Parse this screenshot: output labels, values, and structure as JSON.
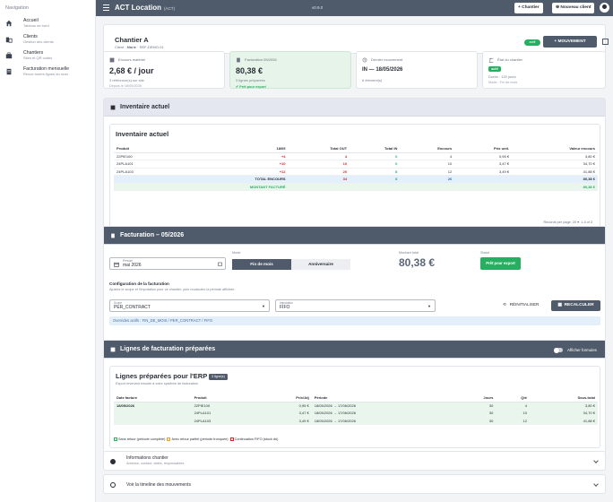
{
  "sidebar": {
    "title": "Navigation",
    "items": [
      {
        "label": "Accueil",
        "sub": "Tableau de bord",
        "icon": "home-icon"
      },
      {
        "label": "Clients",
        "sub": "Gestion des clients",
        "icon": "building-icon"
      },
      {
        "label": "Chantiers",
        "sub": "Sites et QR codes",
        "icon": "briefcase-icon"
      },
      {
        "label": "Facturation mensuelle",
        "sub": "Revue toutes lignes du mois",
        "icon": "receipt-icon"
      }
    ]
  },
  "topbar": {
    "title": "ACT Location",
    "badge": "(ACT)",
    "version": "v0.9.0",
    "chantier_btn": "+ Chantier",
    "client_btn": "Nouveau client"
  },
  "header": {
    "title": "Chantier A",
    "client_label": "Client :",
    "client_name": "Marie",
    "client_ref": "· REF-DEMO-01",
    "status": "actif",
    "mouvement_btn": "+ MOUVEMENT"
  },
  "kpis": [
    {
      "label": "Encours matériel",
      "value": "2,68 € / jour",
      "d1": "3 référence(s) sur site",
      "d2": "Depuis le 18/05/2026"
    },
    {
      "label": "Facturation 05/2026",
      "value": "80,38 €",
      "d1": "3 lignes préparées",
      "d2": "Prêt pour export"
    },
    {
      "label": "Dernier mouvement",
      "value": "IN — 18/05/2026",
      "d1": "6 élément(s)",
      "d2": ""
    },
    {
      "label": "État du chantier",
      "value": "actif",
      "d1": "Durée : 120 jours",
      "d2": "Mode : Fin de mois"
    }
  ],
  "inventaire": {
    "section_title": "Inventaire actuel",
    "card_title": "Inventaire actuel",
    "columns": [
      "Produit",
      "18/05",
      "Total OUT",
      "Total IN",
      "Encours",
      "Prix unit.",
      "Valeur encours"
    ],
    "rows": [
      [
        "22PIE100",
        "+4",
        "4",
        "0",
        "4",
        "0,95 €",
        "3,80 €"
      ],
      [
        "24PLA101",
        "+10",
        "10",
        "0",
        "10",
        "3,47 €",
        "34,70 €"
      ],
      [
        "24PLA103",
        "+12",
        "20",
        "8",
        "12",
        "3,49 €",
        "41,88 €"
      ]
    ],
    "total_label": "TOTAL ENCOURS",
    "total": [
      "34",
      "8",
      "26",
      "80,38 €"
    ],
    "montant_label": "MONTANT FACTURÉ",
    "montant": "80,38 €",
    "records_label": "Records per page:",
    "records_value": "20 ▾",
    "range": "1-3 of 3"
  },
  "facturation": {
    "section_title": "Facturation – 05/2026",
    "periode_label": "Période",
    "periode_value": "mai 2026",
    "mode_label": "Mode",
    "mode_fin": "Fin de mois",
    "mode_anniv": "Anniversaire",
    "montant_label": "Montant total",
    "montant_value": "80,38 €",
    "statut_label": "Statut",
    "statut_value": "Prêt pour export",
    "config_title": "Configuration de la facturation",
    "config_sub": "Ajustez le scope et l'imputation pour ce chantier, puis recalculez la période affichée.",
    "scope_label": "Scope",
    "scope_value": "PER_CONTRACT",
    "imputation_label": "Imputation",
    "imputation_value": "FIFO",
    "reset_btn": "RÉINITIALISER",
    "recalc_btn": "RECALCULER",
    "overrides": "Overrides actifs : FIN_DE_MOIS / PER_CONTRACT / FIFO"
  },
  "lignes": {
    "section_title": "Lignes de facturation préparées",
    "toggle_label": "Afficher formules",
    "card_title": "Lignes préparées pour l'ERP",
    "count_badge": "3 ligne(s)",
    "subtitle": "Export revenant ensuite à votre système de facturation",
    "columns": [
      "Date facture",
      "Produit",
      "Prix/Jdj",
      "Période",
      "Jours",
      "Qté",
      "Sous-total"
    ],
    "rows": [
      [
        "18/05/2026",
        "22PIE100",
        "0,95 €",
        "18/05/2026 → 17/06/2026",
        "30",
        "4",
        "3,80 €"
      ],
      [
        "",
        "24PLA101",
        "3,47 €",
        "18/05/2026 → 17/06/2026",
        "30",
        "10",
        "34,70 €"
      ],
      [
        "",
        "24PLA103",
        "3,49 €",
        "18/05/2026 → 17/06/2026",
        "30",
        "12",
        "41,88 €"
      ]
    ],
    "legend": [
      "Sans retour (période complète)",
      "Avec retour partiel (période tronquée)",
      "Continuation FIFO (stock dû)"
    ]
  },
  "accordions": [
    {
      "title": "Informations chantier",
      "sub": "Adresse, contact, dates, responsables"
    },
    {
      "title": "Voir la timeline des mouvements",
      "sub": ""
    }
  ],
  "colors": {
    "primary": "#4f5a6a",
    "success": "#27ae60",
    "danger": "#d62828"
  }
}
